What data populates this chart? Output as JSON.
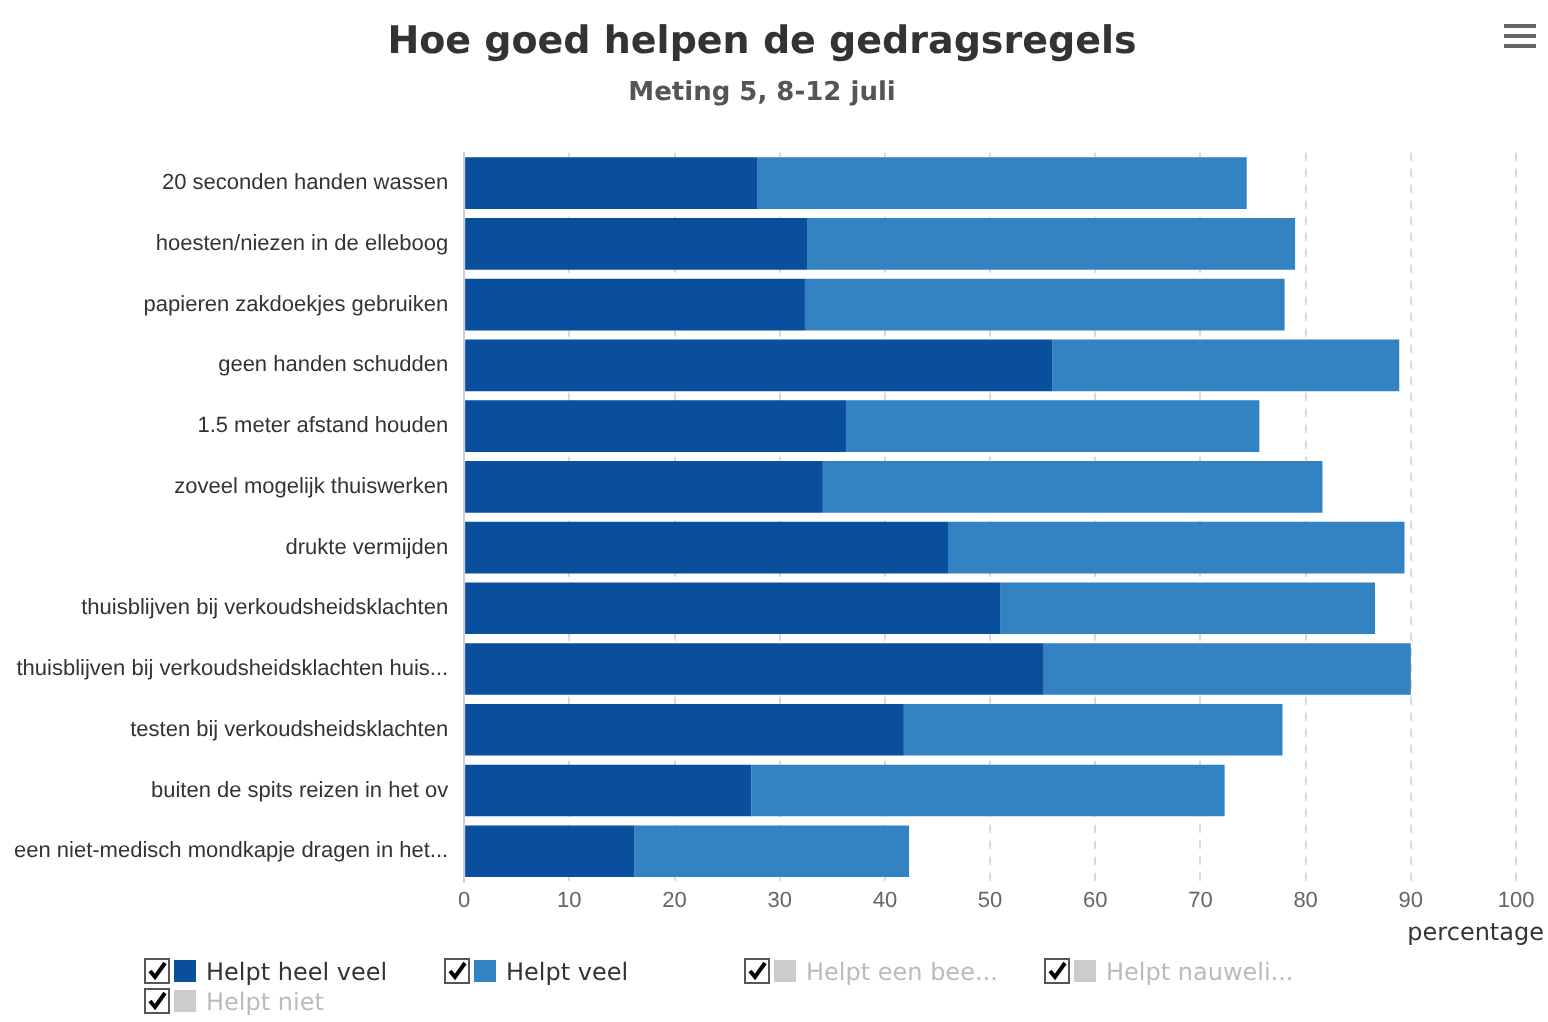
{
  "chart_data": {
    "type": "bar",
    "orientation": "horizontal",
    "stacked": true,
    "title": "Hoe goed helpen de gedragsregels",
    "subtitle": "Meting 5, 8-12 juli",
    "xlabel": "percentage",
    "categories": [
      "20 seconden handen wassen",
      "hoesten/niezen in de elleboog",
      "papieren zakdoekjes gebruiken",
      "geen handen schudden",
      "1.5 meter afstand houden",
      "zoveel mogelijk thuiswerken",
      "drukte vermijden",
      "thuisblijven bij verkoudsheidsklachten",
      "thuisblijven bij verkoudsheidsklachten huis...",
      "testen bij verkoudsheidsklachten",
      "buiten de spits reizen in het ov",
      "een niet-medisch mondkapje dragen in het..."
    ],
    "series": [
      {
        "name": "Helpt heel veel",
        "color": "#0a4f9e",
        "values": [
          27.9,
          32.6,
          32.4,
          55.9,
          36.3,
          34.1,
          46.0,
          51.0,
          55.1,
          41.8,
          27.3,
          16.2
        ]
      },
      {
        "name": "Helpt veel",
        "color": "#3382c2",
        "values": [
          46.5,
          46.4,
          45.6,
          33.0,
          39.3,
          47.5,
          43.4,
          35.6,
          34.9,
          36.0,
          45.0,
          26.1
        ]
      },
      {
        "name": "Helpt een bee...",
        "color": "#cccccc",
        "values": [
          null,
          null,
          null,
          null,
          null,
          null,
          null,
          null,
          null,
          null,
          null,
          null
        ]
      },
      {
        "name": "Helpt nauweli...",
        "color": "#cccccc",
        "values": [
          null,
          null,
          null,
          null,
          null,
          null,
          null,
          null,
          null,
          null,
          null,
          null
        ]
      },
      {
        "name": "Helpt niet",
        "color": "#cccccc",
        "values": [
          null,
          null,
          null,
          null,
          null,
          null,
          null,
          null,
          null,
          null,
          null,
          null
        ]
      }
    ],
    "xlim": [
      0,
      100
    ],
    "xticks": [
      0,
      10,
      20,
      30,
      40,
      50,
      60,
      70,
      80,
      90,
      100
    ],
    "grid": "x",
    "legend": "bottom"
  }
}
